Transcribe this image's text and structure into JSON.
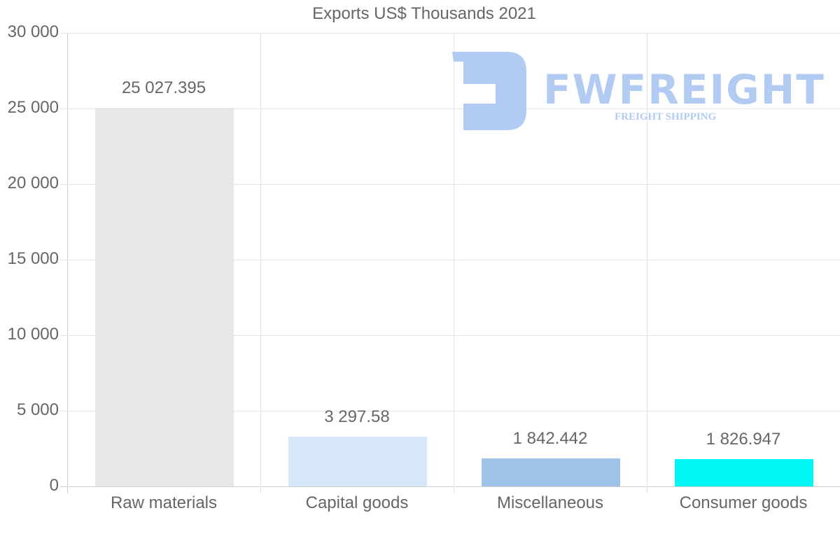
{
  "chart": {
    "title": "Exports US$ Thousands 2021",
    "y_ticks": [
      "30 000",
      "25 000",
      "20 000",
      "15 000",
      "10 000",
      "5 000",
      "0"
    ],
    "bars": [
      {
        "label": "Raw materials",
        "value_label": "25 027.395",
        "color": "#e7e7e7"
      },
      {
        "label": "Capital goods",
        "value_label": "3 297.58",
        "color": "#d6e7f8"
      },
      {
        "label": "Miscellaneous",
        "value_label": "1 842.442",
        "color": "#9dc3e6"
      },
      {
        "label": "Consumer goods",
        "value_label": "1 826.947",
        "color": "#00f5f5"
      }
    ]
  },
  "watermark": {
    "brand": "FWFREIGHT",
    "tagline": "FREIGHT SHIPPING",
    "color": "#a9c6f2"
  },
  "chart_data": {
    "type": "bar",
    "title": "Exports US$ Thousands 2021",
    "categories": [
      "Raw materials",
      "Capital goods",
      "Miscellaneous",
      "Consumer goods"
    ],
    "values": [
      25027.395,
      3297.58,
      1842.442,
      1826.947
    ],
    "xlabel": "",
    "ylabel": "",
    "ylim": [
      0,
      30000
    ],
    "y_ticks": [
      0,
      5000,
      10000,
      15000,
      20000,
      25000,
      30000
    ],
    "grid": true,
    "legend": null,
    "data_labels": true,
    "colors": [
      "#e7e7e7",
      "#d6e7f8",
      "#9dc3e6",
      "#00f5f5"
    ]
  }
}
